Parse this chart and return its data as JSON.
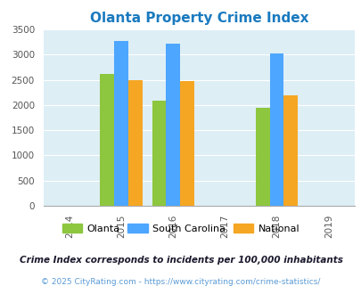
{
  "title": "Olanta Property Crime Index",
  "title_color": "#1a7abf",
  "years": [
    2015,
    2016,
    2018
  ],
  "olanta": [
    2620,
    2090,
    1950
  ],
  "south_carolina": [
    3270,
    3220,
    3020
  ],
  "national": [
    2490,
    2470,
    2200
  ],
  "bar_colors": {
    "olanta": "#8dc63f",
    "south_carolina": "#4da6ff",
    "national": "#f5a623"
  },
  "xlim": [
    2013.5,
    2019.5
  ],
  "ylim": [
    0,
    3500
  ],
  "xticks": [
    2014,
    2015,
    2016,
    2017,
    2018,
    2019
  ],
  "yticks": [
    0,
    500,
    1000,
    1500,
    2000,
    2500,
    3000,
    3500
  ],
  "background_color": "#ddeef5",
  "legend_labels": [
    "Olanta",
    "South Carolina",
    "National"
  ],
  "footnote1": "Crime Index corresponds to incidents per 100,000 inhabitants",
  "footnote2": "© 2025 CityRating.com - https://www.cityrating.com/crime-statistics/",
  "bar_width": 0.27
}
